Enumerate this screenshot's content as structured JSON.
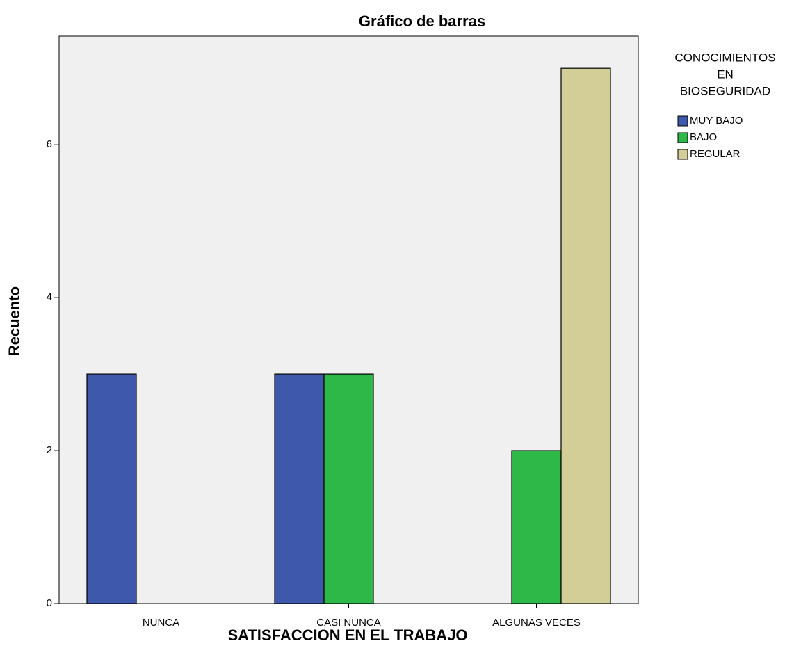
{
  "chart_data": {
    "type": "bar",
    "title": "Gráfico de barras",
    "x_label": "SATISFACCION EN EL TRABAJO",
    "y_label": "Recuento",
    "legend_title": [
      "CONOCIMIENTOS",
      "EN",
      "BIOSEGURIDAD"
    ],
    "categories": [
      "NUNCA",
      "CASI NUNCA",
      "ALGUNAS VECES"
    ],
    "series": [
      {
        "name": "MUY BAJO",
        "color": "#3e58ac",
        "values": [
          3,
          3,
          null
        ]
      },
      {
        "name": "BAJO",
        "color": "#2eb848",
        "values": [
          null,
          3,
          2
        ]
      },
      {
        "name": "REGULAR",
        "color": "#d3ce97",
        "values": [
          null,
          null,
          7
        ]
      }
    ],
    "ylim": [
      0,
      7.42
    ],
    "yticks": [
      0,
      2,
      4,
      6
    ],
    "legend": "right"
  }
}
